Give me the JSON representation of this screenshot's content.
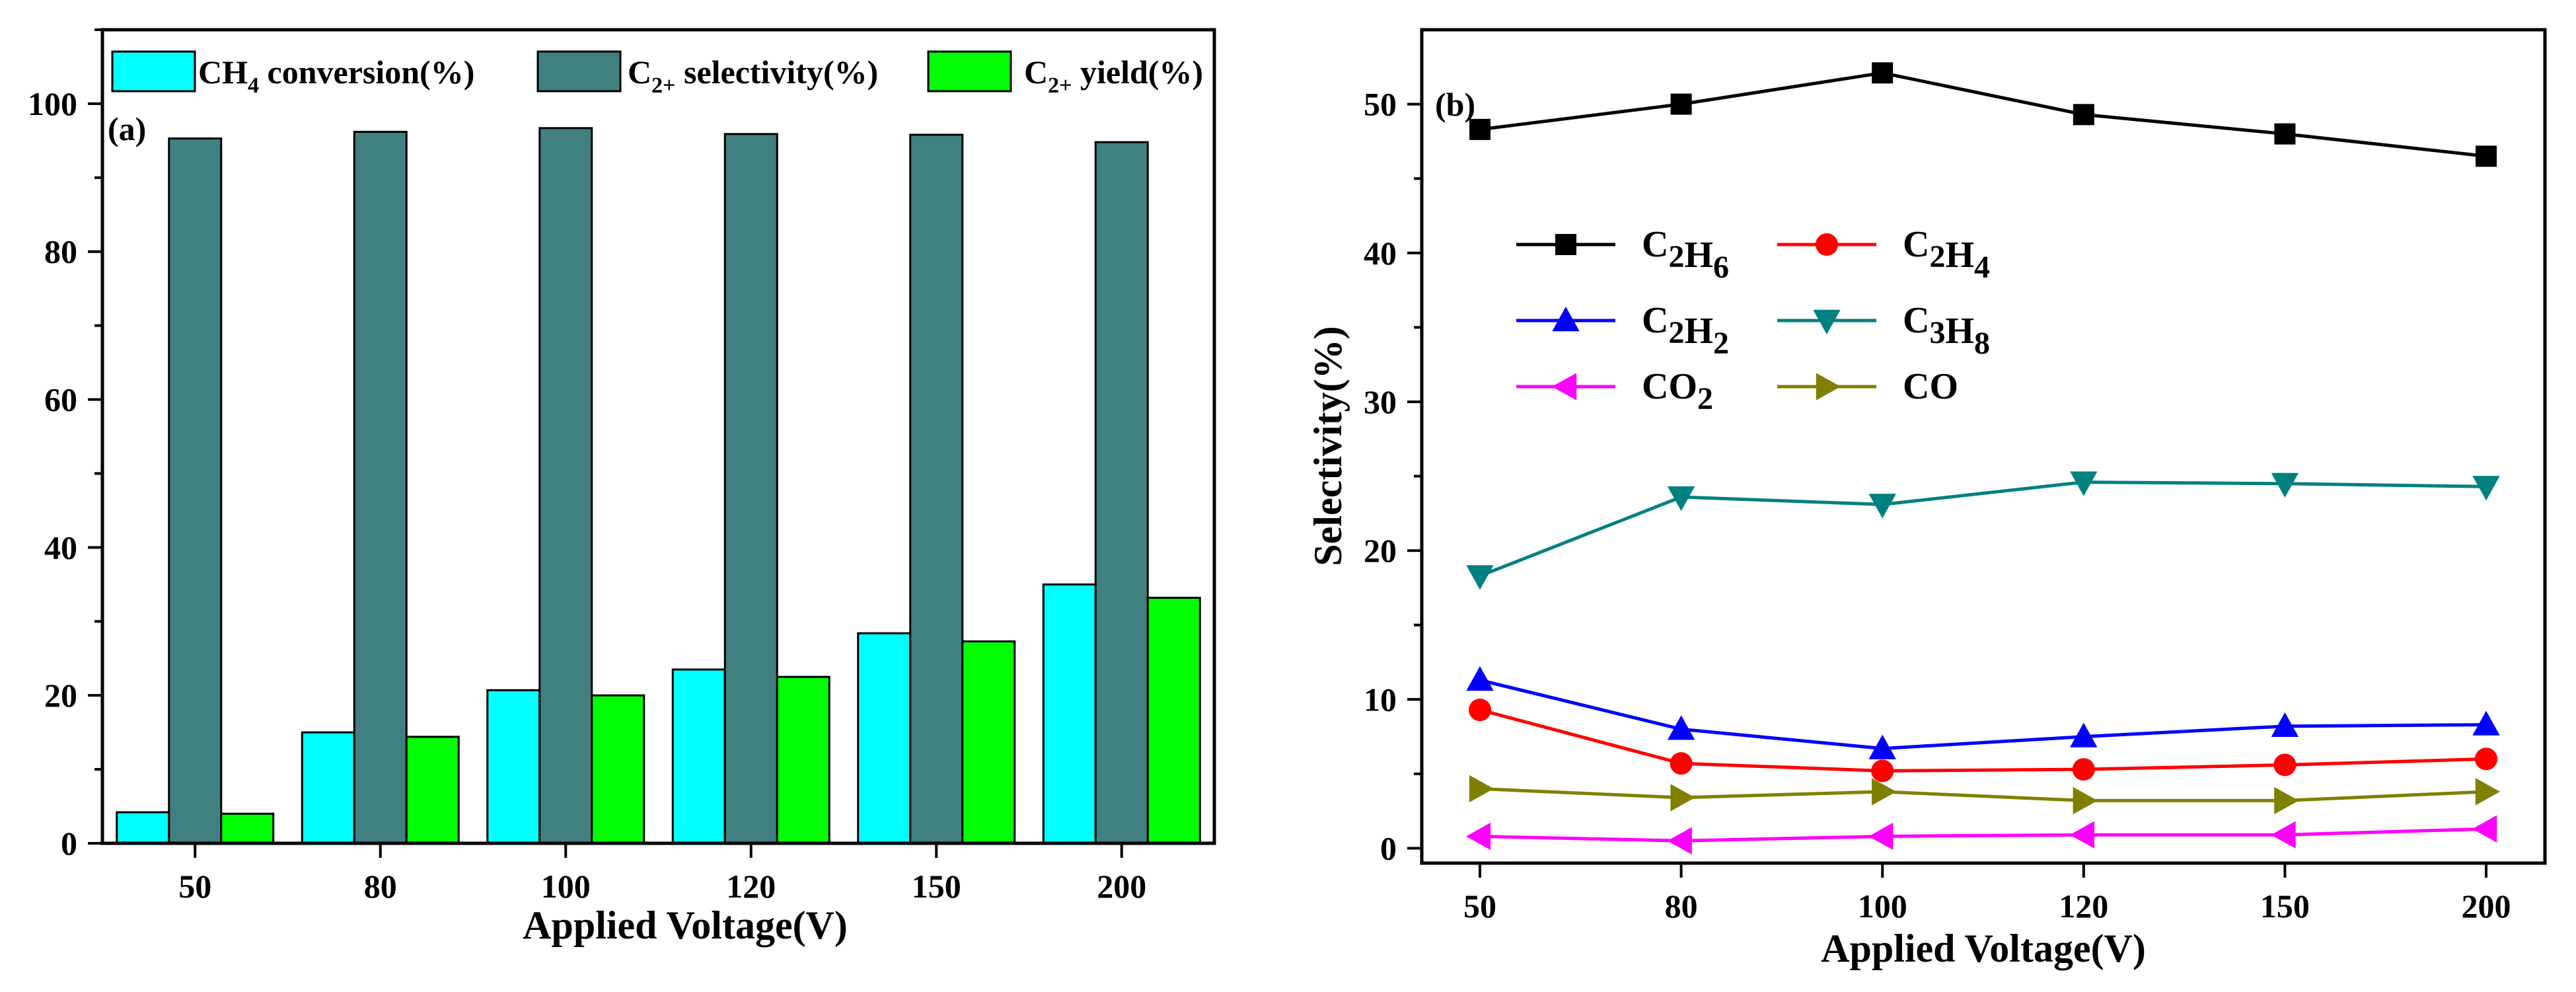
{
  "chart_data": [
    {
      "type": "bar",
      "panel_label": "(a)",
      "xlabel": "Applied Voltage(V)",
      "ylabel": "",
      "ylim": [
        0,
        110
      ],
      "yticks": [
        0,
        20,
        40,
        60,
        80,
        100
      ],
      "categories": [
        "50",
        "80",
        "100",
        "120",
        "150",
        "200"
      ],
      "legend_position": "top",
      "series": [
        {
          "name": "CH4 conversion(%)",
          "legend": {
            "main": "CH",
            "sub": "4",
            "rest": " conversion(%)"
          },
          "color": "#00ffff",
          "values": [
            4.2,
            15.0,
            20.7,
            23.5,
            28.4,
            35.0
          ]
        },
        {
          "name": "C2+ selectivity(%)",
          "legend": {
            "main": "C",
            "sub": "2+",
            "rest": " selectivity(%)"
          },
          "color": "#408080",
          "values": [
            95.3,
            96.2,
            96.7,
            95.9,
            95.8,
            94.8
          ]
        },
        {
          "name": "C2+ yield(%)",
          "legend": {
            "main": "C",
            "sub": "2+",
            "rest": " yield(%)"
          },
          "color": "#00ff00",
          "values": [
            4.0,
            14.4,
            20.0,
            22.5,
            27.3,
            33.2
          ]
        }
      ]
    },
    {
      "type": "line",
      "panel_label": "(b)",
      "xlabel": "Applied Voltage(V)",
      "ylabel": "Selectivity(%)",
      "ylim": [
        -1,
        55
      ],
      "yticks": [
        0,
        10,
        20,
        30,
        40,
        50
      ],
      "categories": [
        "50",
        "80",
        "100",
        "120",
        "150",
        "200"
      ],
      "legend_position": "upper-left",
      "series": [
        {
          "name": "C2H6",
          "legend": [
            [
              "C",
              ""
            ],
            [
              "2",
              "sub"
            ],
            [
              "H",
              ""
            ],
            [
              "6",
              "sub"
            ]
          ],
          "color": "#000000",
          "marker": "square",
          "values": [
            48.3,
            50.0,
            52.1,
            49.3,
            48.0,
            46.5
          ]
        },
        {
          "name": "C2H4",
          "legend": [
            [
              "C",
              ""
            ],
            [
              "2",
              "sub"
            ],
            [
              "H",
              ""
            ],
            [
              "4",
              "sub"
            ]
          ],
          "color": "#ff0000",
          "marker": "circle",
          "values": [
            9.3,
            5.7,
            5.2,
            5.3,
            5.6,
            6.0
          ]
        },
        {
          "name": "C2H2",
          "legend": [
            [
              "C",
              ""
            ],
            [
              "2",
              "sub"
            ],
            [
              "H",
              ""
            ],
            [
              "2",
              "sub"
            ]
          ],
          "color": "#0000ff",
          "marker": "triangle-up",
          "values": [
            11.3,
            8.0,
            6.7,
            7.5,
            8.2,
            8.3
          ]
        },
        {
          "name": "C3H8",
          "legend": [
            [
              "C",
              ""
            ],
            [
              "3",
              "sub"
            ],
            [
              "H",
              ""
            ],
            [
              "8",
              "sub"
            ]
          ],
          "color": "#008080",
          "marker": "triangle-down",
          "values": [
            18.3,
            23.6,
            23.1,
            24.6,
            24.5,
            24.3
          ]
        },
        {
          "name": "CO2",
          "legend": [
            [
              "CO",
              ""
            ],
            [
              "2",
              "sub"
            ]
          ],
          "color": "#ff00ff",
          "marker": "triangle-left",
          "values": [
            0.8,
            0.5,
            0.8,
            0.9,
            0.9,
            1.3
          ]
        },
        {
          "name": "CO",
          "legend": [
            [
              "CO",
              ""
            ]
          ],
          "color": "#808000",
          "marker": "triangle-right",
          "values": [
            4.0,
            3.4,
            3.8,
            3.2,
            3.2,
            3.8
          ]
        }
      ]
    }
  ]
}
